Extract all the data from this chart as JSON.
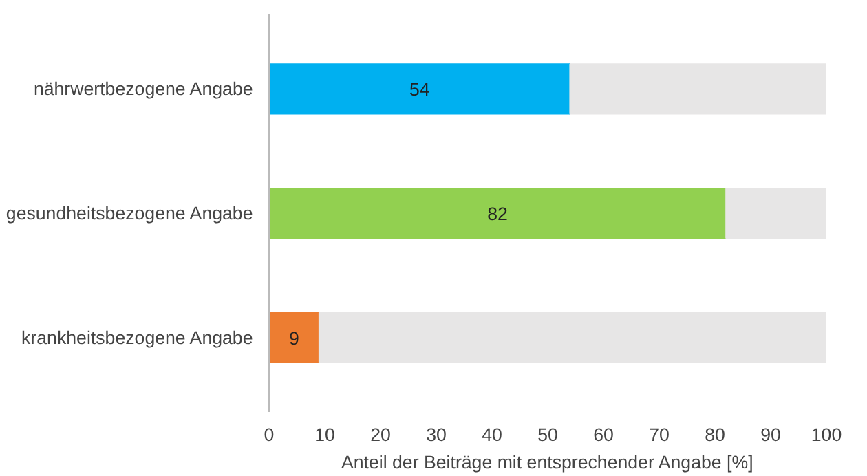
{
  "chart_data": {
    "type": "bar",
    "orientation": "horizontal",
    "stacked": true,
    "xlabel": "Anteil der Beiträge mit entsprechender Angabe [%]",
    "categories": [
      "nährwertbezogene Angabe",
      "gesundheitsbezogene Angabe",
      "krankheitsbezogene Angabe"
    ],
    "series": [
      {
        "colors": [
          "#00b0f0",
          "#92d050",
          "#ed7d31"
        ],
        "values": [
          54,
          82,
          9
        ],
        "value_labels": [
          "54",
          "82",
          "9"
        ]
      },
      {
        "color": "#e7e6e6",
        "values": [
          46,
          18,
          91
        ]
      }
    ],
    "xlim": [
      0,
      100
    ],
    "xticks": [
      0,
      10,
      20,
      30,
      40,
      50,
      60,
      70,
      80,
      90,
      100
    ],
    "grid": false
  }
}
